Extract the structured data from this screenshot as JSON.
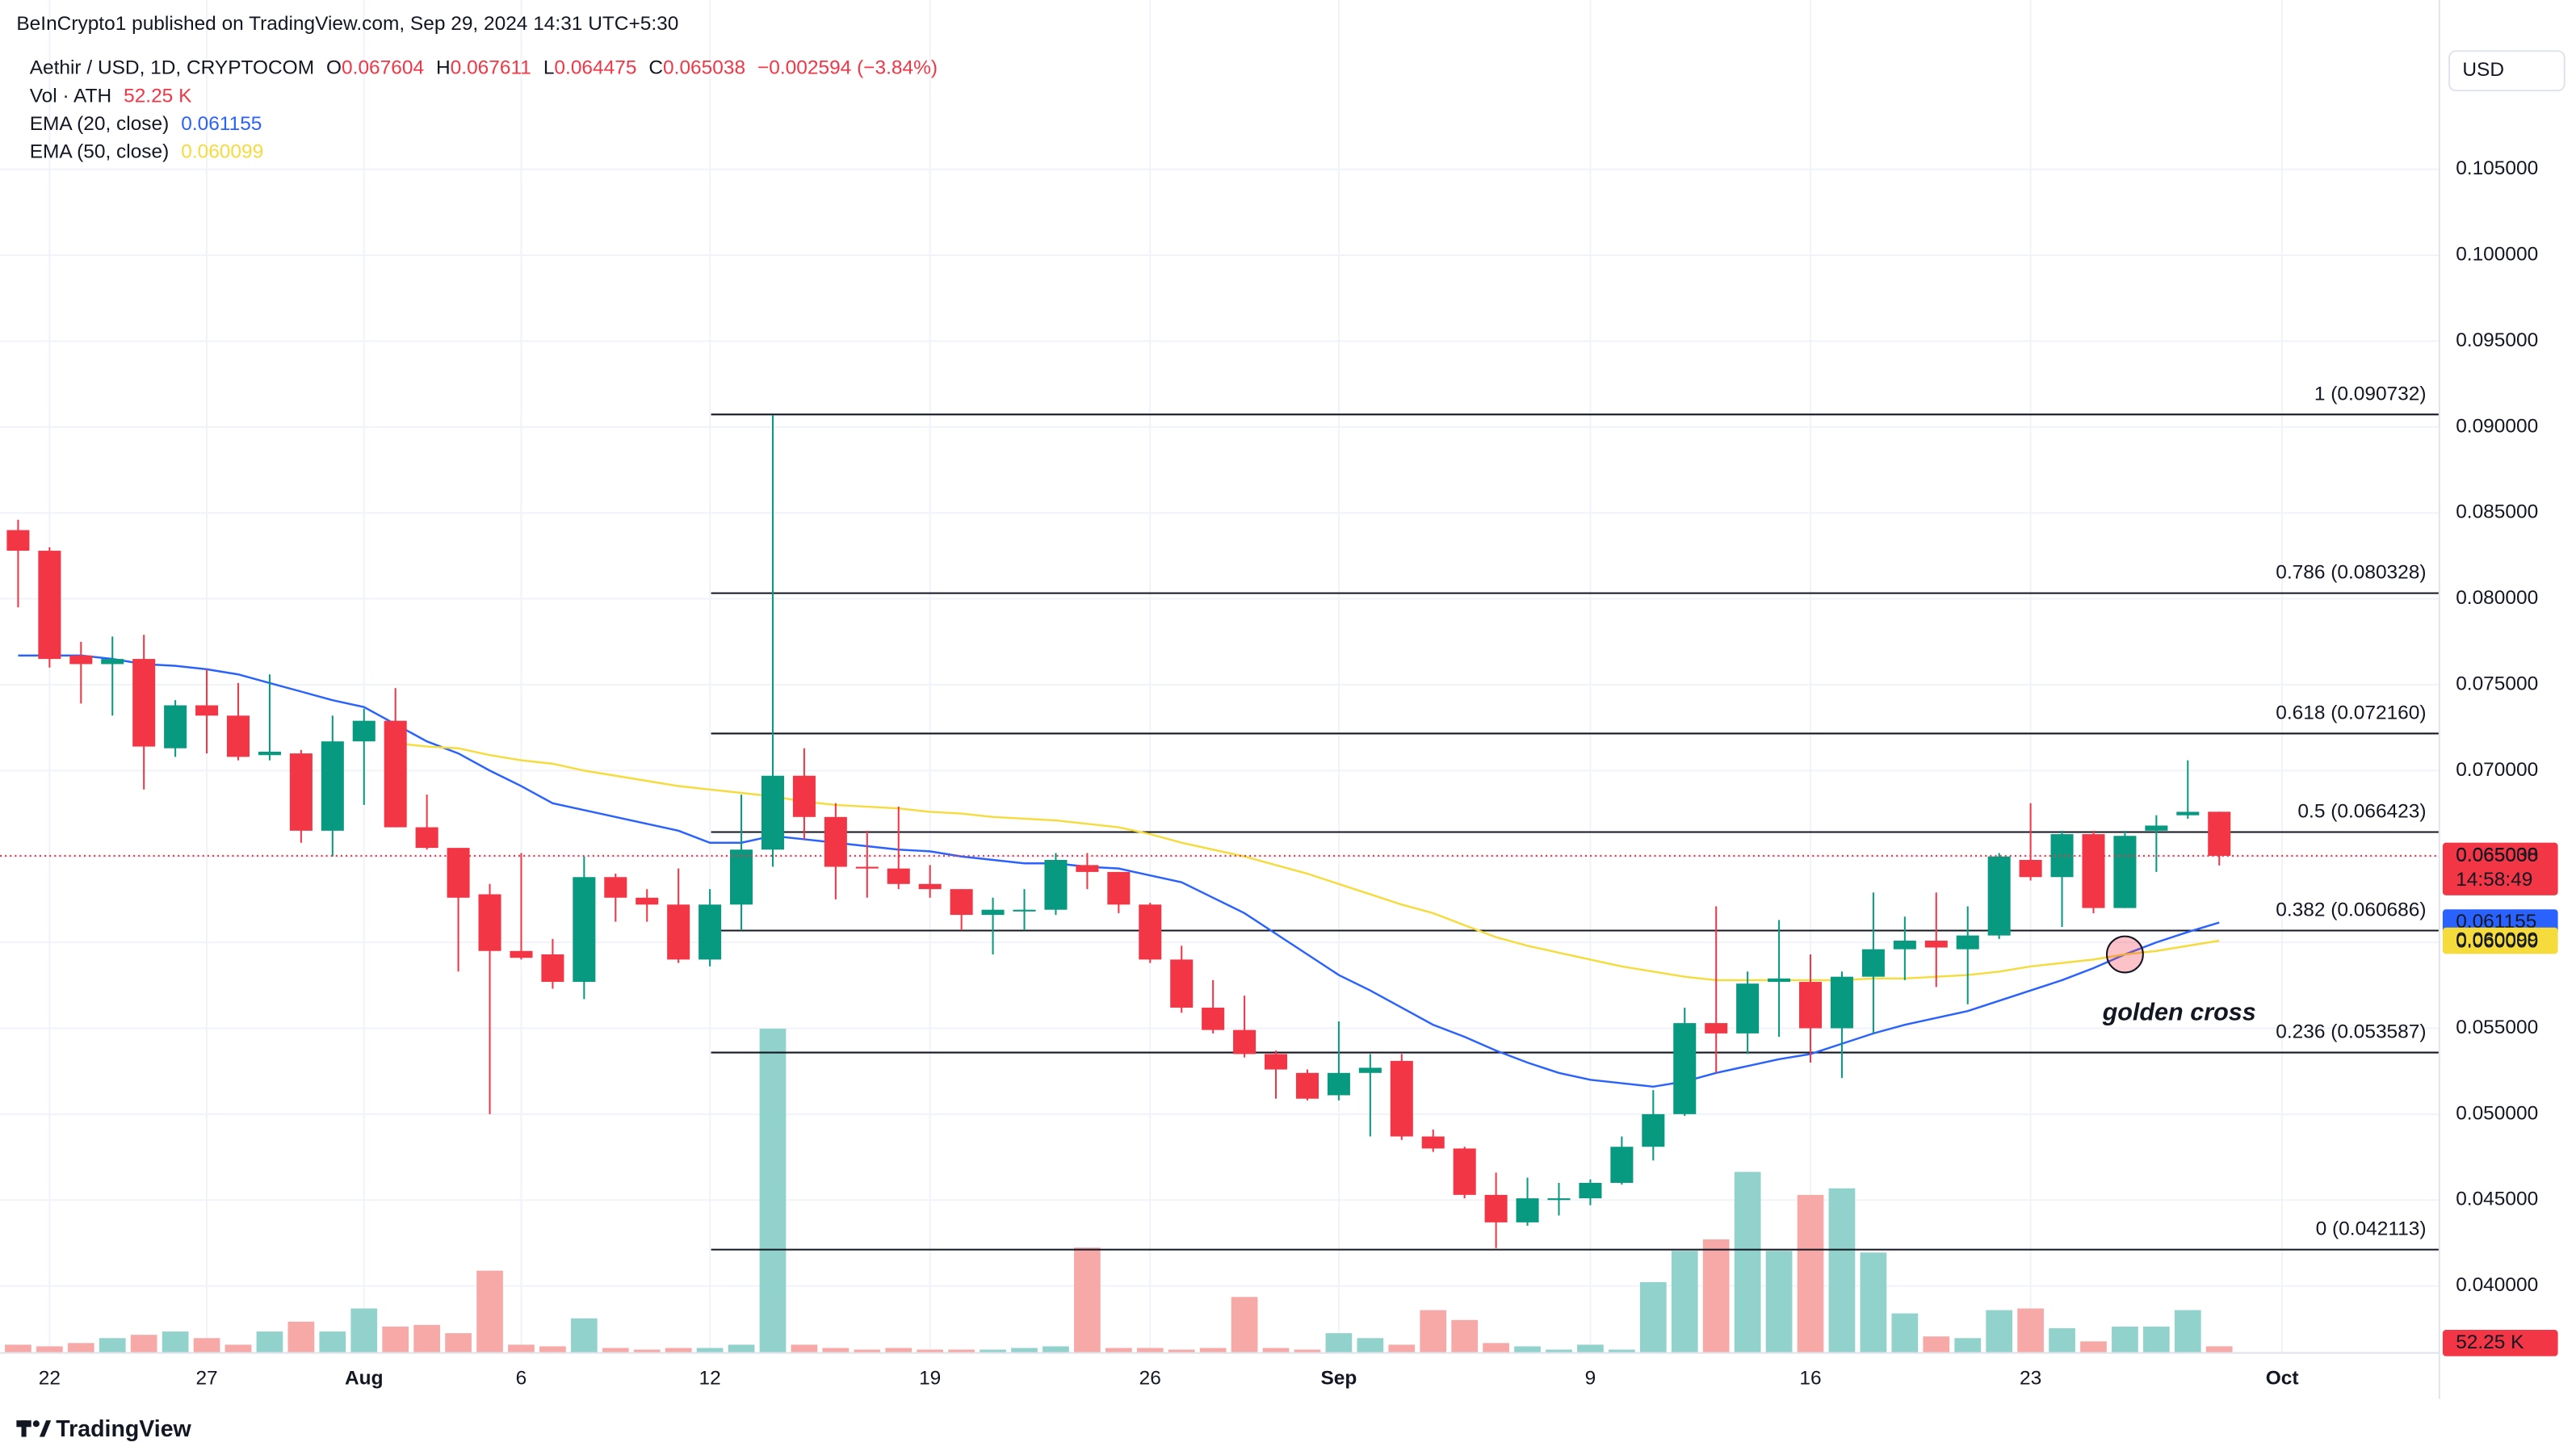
{
  "chart_data": {
    "type": "candlestick",
    "attribution": "BeInCrypto1 published on TradingView.com, Sep 29, 2024 14:31 UTC+5:30",
    "title": "Aethir / USD, 1D, CRYPTOCOM",
    "ohlc_labels": [
      "O",
      "H",
      "L",
      "C"
    ],
    "change": "−0.002594 (−3.84%)",
    "currency": "USD",
    "countdown": "14:58:49",
    "annotation": "golden cross",
    "brand": "TradingView",
    "x": [
      "2024-07-21",
      "2024-07-22",
      "2024-07-23",
      "2024-07-24",
      "2024-07-25",
      "2024-07-26",
      "2024-07-27",
      "2024-07-28",
      "2024-07-29",
      "2024-07-30",
      "2024-07-31",
      "2024-08-01",
      "2024-08-02",
      "2024-08-03",
      "2024-08-04",
      "2024-08-05",
      "2024-08-06",
      "2024-08-07",
      "2024-08-08",
      "2024-08-09",
      "2024-08-10",
      "2024-08-11",
      "2024-08-12",
      "2024-08-13",
      "2024-08-14",
      "2024-08-15",
      "2024-08-16",
      "2024-08-17",
      "2024-08-18",
      "2024-08-19",
      "2024-08-20",
      "2024-08-21",
      "2024-08-22",
      "2024-08-23",
      "2024-08-24",
      "2024-08-25",
      "2024-08-26",
      "2024-08-27",
      "2024-08-28",
      "2024-08-29",
      "2024-08-30",
      "2024-08-31",
      "2024-09-01",
      "2024-09-02",
      "2024-09-03",
      "2024-09-04",
      "2024-09-05",
      "2024-09-06",
      "2024-09-07",
      "2024-09-08",
      "2024-09-09",
      "2024-09-10",
      "2024-09-11",
      "2024-09-12",
      "2024-09-13",
      "2024-09-14",
      "2024-09-15",
      "2024-09-16",
      "2024-09-17",
      "2024-09-18",
      "2024-09-19",
      "2024-09-20",
      "2024-09-21",
      "2024-09-22",
      "2024-09-23",
      "2024-09-24",
      "2024-09-25",
      "2024-09-26",
      "2024-09-27",
      "2024-09-28",
      "2024-09-29"
    ],
    "series": [
      {
        "name": "Aethir / USD",
        "up_color": "#089981",
        "down_color": "#f23645",
        "open": [
          0.084,
          0.0828,
          0.0767,
          0.0762,
          0.0765,
          0.0713,
          0.0738,
          0.0732,
          0.0709,
          0.071,
          0.0665,
          0.0717,
          0.0729,
          0.0667,
          0.0655,
          0.0628,
          0.0595,
          0.0593,
          0.0577,
          0.0638,
          0.0626,
          0.0622,
          0.059,
          0.0622,
          0.0654,
          0.0697,
          0.0673,
          0.0644,
          0.0643,
          0.0634,
          0.0631,
          0.0616,
          0.0618,
          0.0619,
          0.0645,
          0.0641,
          0.0622,
          0.059,
          0.0562,
          0.0549,
          0.0535,
          0.0524,
          0.0511,
          0.0524,
          0.0531,
          0.0487,
          0.048,
          0.0453,
          0.0437,
          0.045,
          0.0451,
          0.046,
          0.0481,
          0.05,
          0.0553,
          0.0547,
          0.0577,
          0.0577,
          0.055,
          0.058,
          0.0596,
          0.0601,
          0.0596,
          0.0604,
          0.0648,
          0.0638,
          0.0663,
          0.062,
          0.0665,
          0.0674,
          0.067604
        ],
        "high": [
          0.0846,
          0.083,
          0.0775,
          0.0778,
          0.0779,
          0.0741,
          0.0759,
          0.0751,
          0.0756,
          0.0712,
          0.0732,
          0.0736,
          0.0748,
          0.0686,
          0.0655,
          0.0634,
          0.0652,
          0.0602,
          0.065,
          0.064,
          0.0631,
          0.0643,
          0.0631,
          0.0686,
          0.0907,
          0.0713,
          0.0681,
          0.0665,
          0.0679,
          0.0645,
          0.0631,
          0.0626,
          0.0631,
          0.0652,
          0.0652,
          0.0641,
          0.0623,
          0.0598,
          0.0578,
          0.0569,
          0.0537,
          0.0526,
          0.0554,
          0.0535,
          0.0535,
          0.0491,
          0.0481,
          0.0466,
          0.0463,
          0.046,
          0.0462,
          0.0487,
          0.0514,
          0.0562,
          0.0621,
          0.0583,
          0.0613,
          0.0593,
          0.0583,
          0.0629,
          0.0615,
          0.0629,
          0.0621,
          0.0652,
          0.0681,
          0.0665,
          0.0665,
          0.0665,
          0.0674,
          0.0706,
          0.067611
        ],
        "low": [
          0.0795,
          0.076,
          0.0739,
          0.0732,
          0.0689,
          0.0708,
          0.071,
          0.0706,
          0.0706,
          0.0658,
          0.065,
          0.068,
          0.0667,
          0.0654,
          0.0583,
          0.05,
          0.059,
          0.0573,
          0.0567,
          0.0612,
          0.0612,
          0.0588,
          0.0586,
          0.0607,
          0.0644,
          0.066,
          0.0625,
          0.0626,
          0.0631,
          0.0626,
          0.0607,
          0.0593,
          0.0607,
          0.0616,
          0.0631,
          0.0617,
          0.0588,
          0.0559,
          0.0547,
          0.0533,
          0.0509,
          0.0508,
          0.0508,
          0.0487,
          0.0485,
          0.0478,
          0.0451,
          0.0422,
          0.0435,
          0.0441,
          0.0447,
          0.0459,
          0.0473,
          0.0499,
          0.0524,
          0.0535,
          0.0545,
          0.053,
          0.0521,
          0.0547,
          0.0578,
          0.0574,
          0.0564,
          0.0602,
          0.0636,
          0.0609,
          0.0617,
          0.062,
          0.0641,
          0.0672,
          0.064475
        ],
        "close": [
          0.0828,
          0.0765,
          0.0762,
          0.0765,
          0.0714,
          0.0738,
          0.0732,
          0.0708,
          0.0711,
          0.0665,
          0.0717,
          0.0729,
          0.0667,
          0.0655,
          0.0626,
          0.0595,
          0.0591,
          0.0577,
          0.0638,
          0.0626,
          0.0622,
          0.059,
          0.0622,
          0.0654,
          0.0697,
          0.0673,
          0.0644,
          0.0643,
          0.0634,
          0.0631,
          0.0616,
          0.0619,
          0.0619,
          0.0648,
          0.0641,
          0.0622,
          0.059,
          0.0562,
          0.0549,
          0.0535,
          0.0526,
          0.0509,
          0.0524,
          0.0527,
          0.0487,
          0.048,
          0.0453,
          0.0437,
          0.0451,
          0.0451,
          0.046,
          0.0481,
          0.05,
          0.0553,
          0.0547,
          0.0576,
          0.0579,
          0.055,
          0.058,
          0.0596,
          0.0601,
          0.0597,
          0.0604,
          0.065,
          0.0638,
          0.0663,
          0.062,
          0.0662,
          0.0668,
          0.0676,
          0.065038
        ]
      }
    ],
    "volume": {
      "name": "Vol · ATH",
      "up_color": "#92d2cc",
      "down_color": "#f7a9a7",
      "values": [
        65000,
        52000,
        78000,
        117000,
        143000,
        169000,
        117000,
        65000,
        169000,
        247000,
        169000,
        351000,
        208000,
        221000,
        156000,
        650000,
        65000,
        52000,
        273000,
        39000,
        26000,
        39000,
        39000,
        65000,
        2561000,
        65000,
        39000,
        26000,
        39000,
        26000,
        26000,
        26000,
        39000,
        52000,
        832000,
        39000,
        39000,
        26000,
        39000,
        442000,
        39000,
        26000,
        156000,
        117000,
        65000,
        338000,
        260000,
        78000,
        52000,
        26000,
        65000,
        26000,
        559000,
        806000,
        897000,
        1430000,
        806000,
        1248000,
        1300000,
        793000,
        312000,
        130000,
        117000,
        338000,
        351000,
        195000,
        91000,
        208000,
        208000,
        338000,
        52250
      ],
      "last_label": "52.25 K"
    },
    "lines": [
      {
        "name": "EMA (20, close)",
        "color": "#2962ff",
        "values": [
          0.0767,
          0.0767,
          0.0767,
          0.0765,
          0.0762,
          0.0761,
          0.0759,
          0.0756,
          0.0751,
          0.0746,
          0.0741,
          0.0737,
          0.0727,
          0.0717,
          0.071,
          0.07,
          0.0691,
          0.0681,
          0.0677,
          0.0673,
          0.0669,
          0.0665,
          0.0658,
          0.0658,
          0.0662,
          0.066,
          0.0658,
          0.0656,
          0.0654,
          0.0653,
          0.065,
          0.0648,
          0.0646,
          0.0646,
          0.0644,
          0.0643,
          0.0639,
          0.0635,
          0.0626,
          0.0617,
          0.0605,
          0.0593,
          0.0581,
          0.0572,
          0.0562,
          0.0552,
          0.0545,
          0.0537,
          0.053,
          0.0524,
          0.052,
          0.0518,
          0.0516,
          0.0519,
          0.0524,
          0.0528,
          0.0532,
          0.0535,
          0.0541,
          0.0547,
          0.0552,
          0.0556,
          0.056,
          0.0566,
          0.0572,
          0.0578,
          0.0585,
          0.0593,
          0.06,
          0.0606,
          0.061155
        ]
      },
      {
        "name": "EMA (50, close)",
        "color": "#f5dc3c",
        "values": [
          null,
          null,
          null,
          null,
          null,
          null,
          null,
          null,
          null,
          null,
          null,
          null,
          0.0716,
          0.0714,
          0.0713,
          0.0709,
          0.0706,
          0.0704,
          0.07,
          0.0697,
          0.0694,
          0.0691,
          0.0689,
          0.0687,
          0.0685,
          0.0682,
          0.068,
          0.0679,
          0.0678,
          0.0676,
          0.0675,
          0.0673,
          0.0672,
          0.0671,
          0.0669,
          0.0667,
          0.0663,
          0.0658,
          0.0654,
          0.065,
          0.0645,
          0.064,
          0.0634,
          0.0628,
          0.0622,
          0.0617,
          0.061,
          0.0603,
          0.0598,
          0.0594,
          0.059,
          0.0586,
          0.0583,
          0.058,
          0.0578,
          0.0578,
          0.0578,
          0.0578,
          0.0578,
          0.0579,
          0.0579,
          0.058,
          0.0581,
          0.0583,
          0.0586,
          0.0588,
          0.059,
          0.0593,
          0.0595,
          0.0598,
          0.060099
        ]
      }
    ],
    "fib_levels": [
      {
        "value": 0.090732,
        "label": "1 (0.090732)"
      },
      {
        "value": 0.080328,
        "label": "0.786 (0.080328)"
      },
      {
        "value": 0.07216,
        "label": "0.618 (0.072160)"
      },
      {
        "value": 0.066423,
        "label": "0.5 (0.066423)"
      },
      {
        "value": 0.060686,
        "label": "0.382 (0.060686)"
      },
      {
        "value": 0.053587,
        "label": "0.236 (0.053587)"
      },
      {
        "value": 0.042113,
        "label": "0 (0.042113)"
      }
    ],
    "ylim": [
      0.0361,
      0.1139
    ],
    "yticks": [
      {
        "value": 0.04,
        "label": "0.040000"
      },
      {
        "value": 0.045,
        "label": "0.045000"
      },
      {
        "value": 0.05,
        "label": "0.050000"
      },
      {
        "value": 0.055,
        "label": "0.055000"
      },
      {
        "value": 0.06,
        "label": "0.060000"
      },
      {
        "value": 0.065,
        "label": "0.065000"
      },
      {
        "value": 0.07,
        "label": "0.070000"
      },
      {
        "value": 0.075,
        "label": "0.075000"
      },
      {
        "value": 0.08,
        "label": "0.080000"
      },
      {
        "value": 0.085,
        "label": "0.085000"
      },
      {
        "value": 0.09,
        "label": "0.090000"
      },
      {
        "value": 0.095,
        "label": "0.095000"
      },
      {
        "value": 0.1,
        "label": "0.100000"
      },
      {
        "value": 0.105,
        "label": "0.105000"
      }
    ],
    "xlim": [
      "2024-07-21",
      "2024-10-06"
    ],
    "xticks": [
      {
        "value": "2024-07-22",
        "label": "22"
      },
      {
        "value": "2024-07-27",
        "label": "27"
      },
      {
        "value": "2024-08-01",
        "label": "Aug"
      },
      {
        "value": "2024-08-06",
        "label": "6"
      },
      {
        "value": "2024-08-12",
        "label": "12"
      },
      {
        "value": "2024-08-19",
        "label": "19"
      },
      {
        "value": "2024-08-26",
        "label": "26"
      },
      {
        "value": "2024-09-01",
        "label": "Sep"
      },
      {
        "value": "2024-09-09",
        "label": "9"
      },
      {
        "value": "2024-09-16",
        "label": "16"
      },
      {
        "value": "2024-09-23",
        "label": "23"
      },
      {
        "value": "2024-10-01",
        "label": "Oct"
      }
    ],
    "grid": true
  }
}
